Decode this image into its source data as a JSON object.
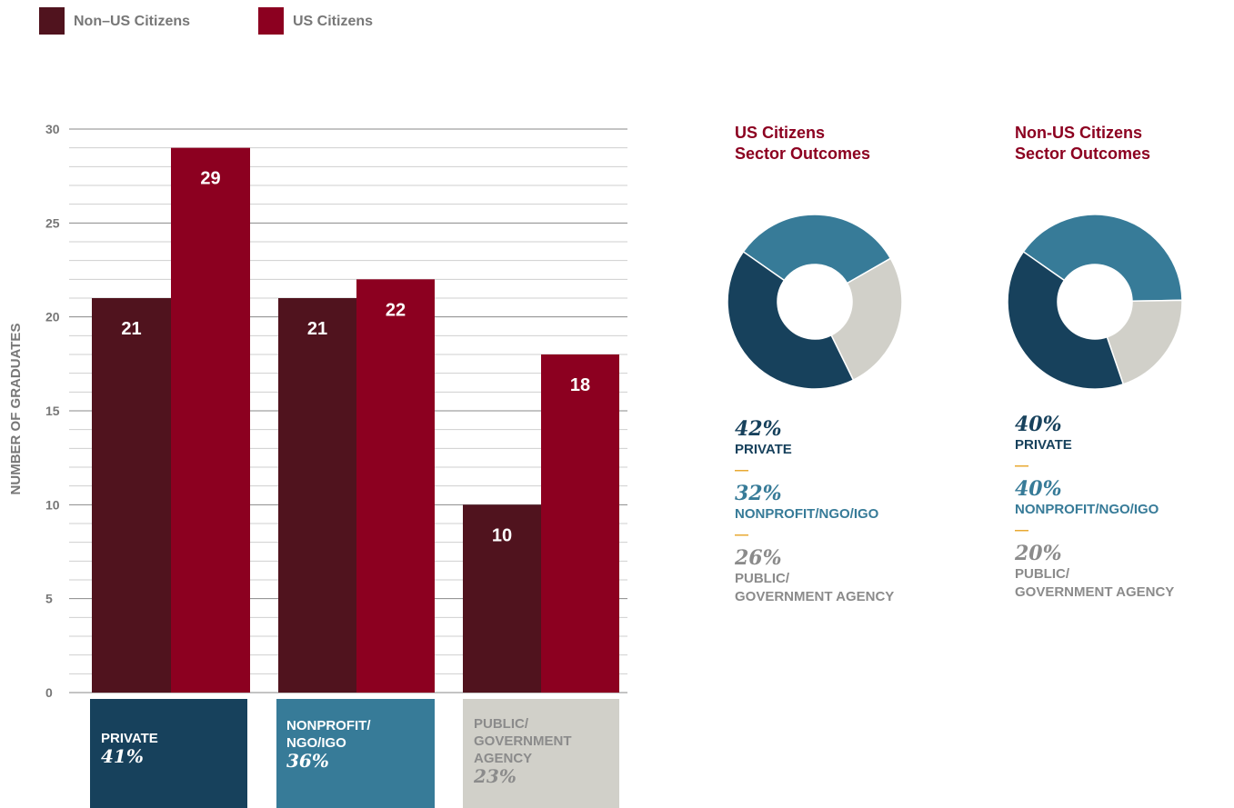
{
  "legend": [
    {
      "label": "Non–US Citizens",
      "color": "#50131e"
    },
    {
      "label": "US Citizens",
      "color": "#8c0020"
    }
  ],
  "chart_data": {
    "type": "bar",
    "ylabel": "NUMBER OF GRADUATES",
    "ylim": [
      0,
      30
    ],
    "yticks": [
      0,
      5,
      10,
      15,
      20,
      25,
      30
    ],
    "grid": true,
    "legend_position": "top-left",
    "categories": [
      "PRIVATE",
      "NONPROFIT/NGO/IGO",
      "PUBLIC/GOVERNMENT AGENCY"
    ],
    "series": [
      {
        "name": "Non–US Citizens",
        "color": "#50131e",
        "values": [
          21,
          21,
          10
        ]
      },
      {
        "name": "US Citizens",
        "color": "#8c0020",
        "values": [
          29,
          22,
          18
        ]
      }
    ]
  },
  "sectors": [
    {
      "lines": [
        "PRIVATE"
      ],
      "pct": "41%",
      "bg": "#17415c",
      "text": "#ffffff"
    },
    {
      "lines": [
        "NONPROFIT/",
        "NGO/IGO"
      ],
      "pct": "36%",
      "bg": "#377b98",
      "text": "#ffffff"
    },
    {
      "lines": [
        "PUBLIC/",
        "GOVERNMENT",
        "AGENCY"
      ],
      "pct": "23%",
      "bg": "#d1d0c9",
      "text": "#8b8b8b"
    }
  ],
  "donuts": [
    {
      "title_lines": [
        "US Citizens",
        "Sector Outcomes"
      ],
      "segments": [
        {
          "label": "PRIVATE",
          "pct_text": "42%",
          "value": 42,
          "color": "#17415c",
          "text_color": "#17415c"
        },
        {
          "label": "NONPROFIT/NGO/IGO",
          "pct_text": "32%",
          "value": 32,
          "color": "#377b98",
          "text_color": "#377b98"
        },
        {
          "label_lines": [
            "PUBLIC/",
            "GOVERNMENT AGENCY"
          ],
          "pct_text": "26%",
          "value": 26,
          "color": "#d1d0c9",
          "text_color": "#8b8b8b"
        }
      ]
    },
    {
      "title_lines": [
        "Non-US Citizens",
        "Sector Outcomes"
      ],
      "segments": [
        {
          "label": "PRIVATE",
          "pct_text": "40%",
          "value": 40,
          "color": "#17415c",
          "text_color": "#17415c"
        },
        {
          "label": "NONPROFIT/NGO/IGO",
          "pct_text": "40%",
          "value": 40,
          "color": "#377b98",
          "text_color": "#377b98"
        },
        {
          "label_lines": [
            "PUBLIC/",
            "GOVERNMENT AGENCY"
          ],
          "pct_text": "20%",
          "value": 20,
          "color": "#d1d0c9",
          "text_color": "#8b8b8b"
        }
      ]
    }
  ],
  "dash_char": "—"
}
